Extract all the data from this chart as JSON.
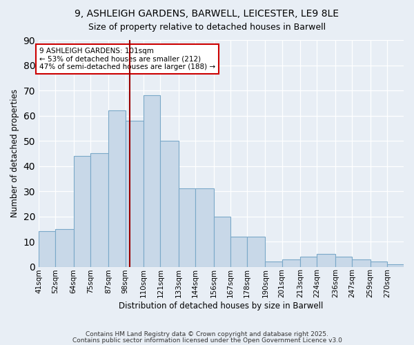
{
  "title1": "9, ASHLEIGH GARDENS, BARWELL, LEICESTER, LE9 8LE",
  "title2": "Size of property relative to detached houses in Barwell",
  "xlabel": "Distribution of detached houses by size in Barwell",
  "ylabel": "Number of detached properties",
  "bar_labels": [
    "41sqm",
    "52sqm",
    "64sqm",
    "75sqm",
    "87sqm",
    "98sqm",
    "110sqm",
    "121sqm",
    "133sqm",
    "144sqm",
    "156sqm",
    "167sqm",
    "178sqm",
    "190sqm",
    "201sqm",
    "213sqm",
    "224sqm",
    "236sqm",
    "247sqm",
    "259sqm",
    "270sqm"
  ],
  "bins": [
    41,
    52,
    64,
    75,
    87,
    98,
    110,
    121,
    133,
    144,
    156,
    167,
    178,
    190,
    201,
    213,
    224,
    236,
    247,
    259,
    270
  ],
  "counts": [
    14,
    15,
    44,
    45,
    62,
    58,
    68,
    50,
    31,
    31,
    20,
    12,
    12,
    2,
    3,
    4,
    5,
    4,
    3,
    2,
    1
  ],
  "bar_color": "#c8d8e8",
  "bar_edge_color": "#7aa8c8",
  "vline_x": 101,
  "vline_color": "#990000",
  "annotation_text": "9 ASHLEIGH GARDENS: 101sqm\n← 53% of detached houses are smaller (212)\n47% of semi-detached houses are larger (188) →",
  "annotation_box_color": "white",
  "annotation_box_edge": "#cc0000",
  "ylim": [
    0,
    90
  ],
  "yticks": [
    0,
    10,
    20,
    30,
    40,
    50,
    60,
    70,
    80,
    90
  ],
  "background_color": "#e8eef5",
  "grid_color": "white",
  "footer1": "Contains HM Land Registry data © Crown copyright and database right 2025.",
  "footer2": "Contains public sector information licensed under the Open Government Licence v3.0"
}
